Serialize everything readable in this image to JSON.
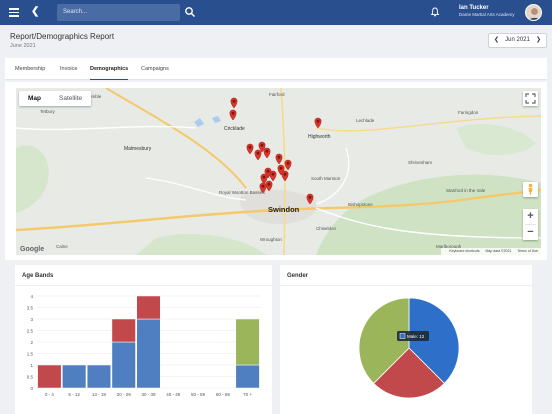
{
  "header": {
    "search_placeholder": "Search...",
    "user_name": "Ian Tucker",
    "user_org": "Dame Martial Arts Academy"
  },
  "page": {
    "title": "Report/Demographics Report",
    "subtitle": "June 2021",
    "period_label": "Jun 2021"
  },
  "tabs": [
    {
      "label": "Membership",
      "active": false
    },
    {
      "label": "Invoice",
      "active": false
    },
    {
      "label": "Demographics",
      "active": true
    },
    {
      "label": "Campaigns",
      "active": false
    }
  ],
  "map": {
    "type_buttons": [
      "Map",
      "Satellite"
    ],
    "selected_type": "Map",
    "logo": "Google",
    "attribution": [
      "Keyboard shortcuts",
      "Map data ©2021",
      "Terms of Use"
    ],
    "places": [
      {
        "name": "Tetbury",
        "kind": "town"
      },
      {
        "name": "Cricklade",
        "kind": "town"
      },
      {
        "name": "Highworth",
        "kind": "town"
      },
      {
        "name": "Malmesbury",
        "kind": "town"
      },
      {
        "name": "Swindon",
        "kind": "city"
      },
      {
        "name": "Wroughton",
        "kind": "town"
      },
      {
        "name": "Royal Wootton Bassett",
        "kind": "town"
      },
      {
        "name": "Lechlade",
        "kind": "town"
      },
      {
        "name": "South Marston",
        "kind": "town"
      },
      {
        "name": "Shrivenham",
        "kind": "town"
      },
      {
        "name": "Faringdon",
        "kind": "town"
      },
      {
        "name": "Chiseldon",
        "kind": "town"
      },
      {
        "name": "Calne",
        "kind": "town"
      },
      {
        "name": "Marlborough",
        "kind": "town"
      },
      {
        "name": "Stanford in the Vale",
        "kind": "town"
      },
      {
        "name": "Bishopstone",
        "kind": "town"
      },
      {
        "name": "Kemble",
        "kind": "town"
      },
      {
        "name": "Fairford",
        "kind": "town"
      }
    ],
    "marker_color": "#d9362b"
  },
  "age_card": {
    "title": "Age Bands"
  },
  "gender_card": {
    "title": "Gender",
    "tooltip": "Male: 12"
  },
  "chart_data": [
    {
      "type": "bar",
      "stacked": true,
      "categories": [
        "0 - 4",
        "5 - 12",
        "13 - 19",
        "20 - 29",
        "30 - 39",
        "40 - 49",
        "50 - 59",
        "60 - 69",
        "70 +"
      ],
      "series": [
        {
          "color": "#4f7fc1",
          "values": [
            0,
            1,
            1,
            2,
            3,
            0,
            0,
            0,
            1
          ]
        },
        {
          "color": "#c1484b",
          "values": [
            1,
            0,
            0,
            1,
            1,
            0,
            0,
            0,
            0
          ]
        },
        {
          "color": "#9ab55a",
          "values": [
            0,
            0,
            0,
            0,
            0,
            0,
            0,
            0,
            2
          ]
        }
      ],
      "yticks": [
        0,
        0.5,
        1,
        1.5,
        2,
        2.5,
        3,
        3.5,
        4
      ],
      "ylim": [
        0,
        4
      ],
      "grid": true
    },
    {
      "type": "pie",
      "slices": [
        {
          "label": "Male",
          "value": 12,
          "color": "#2e6fc9"
        },
        {
          "value": 8,
          "color": "#c1484b"
        },
        {
          "value": 12,
          "color": "#9ab55a"
        }
      ]
    }
  ]
}
